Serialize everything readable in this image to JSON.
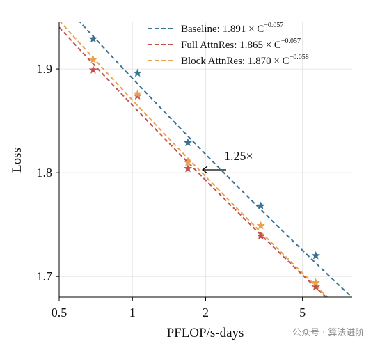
{
  "chart_data": {
    "type": "scatter",
    "xlabel": "PFLOP/s-days",
    "ylabel": "Loss",
    "log_x": true,
    "grid": true,
    "legend": "upper right",
    "xlim": [
      0.5,
      8
    ],
    "ylim": [
      1.68,
      1.945
    ],
    "xticks": [
      0.5,
      1,
      2,
      5
    ],
    "yticks": [
      1.7,
      1.8,
      1.9
    ],
    "x": [
      0.69,
      1.05,
      1.69,
      3.37,
      5.67
    ],
    "series": [
      {
        "name": "Baseline",
        "fit_text": ": 1.891 × C",
        "fit_exp": "−0.057",
        "fit": {
          "coef": 1.891,
          "exp": -0.057
        },
        "color": "#3a7190",
        "values": [
          1.929,
          1.896,
          1.829,
          1.768,
          1.72
        ]
      },
      {
        "name": "Full AttnRes",
        "fit_text": ": 1.865 × C",
        "fit_exp": "−0.057",
        "fit": {
          "coef": 1.865,
          "exp": -0.057
        },
        "color": "#c4504c",
        "values": [
          1.899,
          1.874,
          1.804,
          1.739,
          1.69
        ]
      },
      {
        "name": "Block AttnRes",
        "fit_text": ": 1.870 × C",
        "fit_exp": "−0.058",
        "fit": {
          "coef": 1.87,
          "exp": -0.058
        },
        "color": "#e9a14d",
        "values": [
          1.909,
          1.876,
          1.81,
          1.749,
          1.694
        ]
      }
    ],
    "annotation": "1.25×",
    "watermark": "公众号 · 算法进阶"
  }
}
